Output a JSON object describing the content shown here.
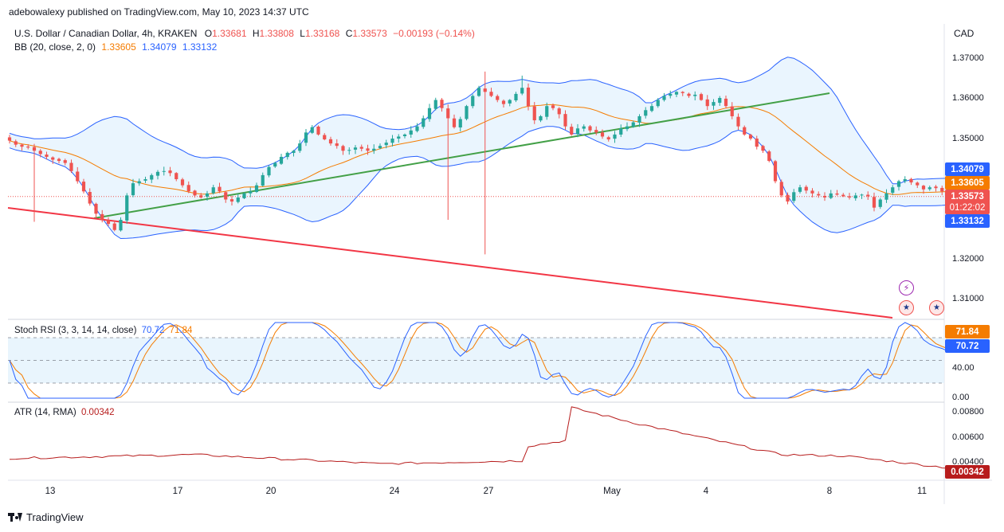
{
  "publisher_line": "adebowalexy published on TradingView.com, May 10, 2023 14:37 UTC",
  "footer_logo_text": "TradingView",
  "currency": "CAD",
  "legend": {
    "title": "U.S. Dollar / Canadian Dollar, 4h, KRAKEN",
    "o_label": "O",
    "o_val": "1.33681",
    "h_label": "H",
    "h_val": "1.33808",
    "l_label": "L",
    "l_val": "1.33168",
    "c_label": "C",
    "c_val": "1.33573",
    "change": "−0.00193 (−0.14%)",
    "bb_label": "BB (20, close, 2, 0)",
    "bb_basis": "1.33605",
    "bb_upper": "1.34079",
    "bb_lower": "1.33132"
  },
  "price_tags": {
    "upper": "1.34079",
    "basis": "1.33605",
    "close": "1.33573",
    "countdown": "01:22:02",
    "lower": "1.33132"
  },
  "price_axis": [
    "1.37000",
    "1.36000",
    "1.35000",
    "1.32000",
    "1.31000"
  ],
  "stoch": {
    "label": "Stoch RSI (3, 3, 14, 14, close)",
    "k_val": "70.72",
    "d_val": "71.84",
    "axis": [
      "40.00",
      "0.00"
    ]
  },
  "atr": {
    "label": "ATR (14, RMA)",
    "val": "0.00342",
    "axis": [
      "0.00800",
      "0.00600",
      "0.00400"
    ]
  },
  "x_ticks": [
    "13",
    "17",
    "20",
    "24",
    "27",
    "May",
    "4",
    "8",
    "11"
  ],
  "colors": {
    "up": "#26a69a",
    "down": "#ef5350",
    "basis": "#f57c00",
    "bands": "#2962ff",
    "band_fill": "#e3f2fd",
    "support": "#43a047",
    "resistance": "#f23645",
    "atr": "#b71c1c"
  },
  "chart_data": [
    {
      "type": "candlestick",
      "name": "USDCAD 4h with Bollinger Bands",
      "y_range": [
        1.3045,
        1.3735
      ],
      "close": [
        1.3495,
        1.3485,
        1.348,
        1.3478,
        1.347,
        1.3462,
        1.3455,
        1.3448,
        1.3445,
        1.344,
        1.342,
        1.3395,
        1.337,
        1.334,
        1.3315,
        1.33,
        1.329,
        1.3275,
        1.33,
        1.336,
        1.339,
        1.3395,
        1.34,
        1.341,
        1.3418,
        1.342,
        1.3415,
        1.34,
        1.3385,
        1.337,
        1.336,
        1.3355,
        1.3365,
        1.338,
        1.337,
        1.335,
        1.3345,
        1.3355,
        1.3365,
        1.337,
        1.3385,
        1.341,
        1.343,
        1.344,
        1.3455,
        1.3465,
        1.347,
        1.3488,
        1.3515,
        1.3528,
        1.351,
        1.3498,
        1.3488,
        1.3482,
        1.347,
        1.3472,
        1.3478,
        1.3475,
        1.347,
        1.3475,
        1.3482,
        1.349,
        1.35,
        1.3505,
        1.351,
        1.352,
        1.353,
        1.355,
        1.3575,
        1.3595,
        1.3575,
        1.355,
        1.3528,
        1.3548,
        1.358,
        1.3605,
        1.3625,
        1.3615,
        1.3605,
        1.3595,
        1.3585,
        1.3595,
        1.361,
        1.3625,
        1.358,
        1.3545,
        1.3555,
        1.358,
        1.3575,
        1.356,
        1.353,
        1.351,
        1.3525,
        1.353,
        1.352,
        1.3515,
        1.3505,
        1.3498,
        1.351,
        1.3525,
        1.353,
        1.354,
        1.3555,
        1.357,
        1.358,
        1.3595,
        1.3605,
        1.361,
        1.3615,
        1.3612,
        1.3605,
        1.3608,
        1.3595,
        1.358,
        1.359,
        1.36,
        1.358,
        1.3555,
        1.353,
        1.351,
        1.35,
        1.348,
        1.347,
        1.3445,
        1.3395,
        1.336,
        1.3345,
        1.3368,
        1.338,
        1.3372,
        1.3365,
        1.336,
        1.3355,
        1.3365,
        1.3362,
        1.3358,
        1.3355,
        1.336,
        1.3362,
        1.3358,
        1.333,
        1.335,
        1.3365,
        1.338,
        1.3395,
        1.34,
        1.3392,
        1.3385,
        1.3375,
        1.338,
        1.3378,
        1.337,
        1.3372,
        1.3357
      ],
      "bb_period": 20,
      "bb_stddev": 2,
      "last": {
        "upper": 1.34079,
        "basis": 1.33605,
        "close": 1.33573,
        "lower": 1.33132
      }
    },
    {
      "type": "line",
      "name": "Stoch RSI (3, 3, 14, 14, close)",
      "y_range": [
        0,
        100
      ],
      "bands": [
        20,
        50,
        80
      ],
      "last": {
        "k": 70.72,
        "d": 71.84
      }
    },
    {
      "type": "line",
      "name": "ATR (14, RMA)",
      "y_range": [
        0.0026,
        0.0086
      ],
      "key_points": [
        {
          "bar": 0,
          "value": 0.0042
        },
        {
          "bar": 30,
          "value": 0.0045
        },
        {
          "bar": 60,
          "value": 0.00375
        },
        {
          "bar": 83,
          "value": 0.004
        },
        {
          "bar": 84,
          "value": 0.0052
        },
        {
          "bar": 90,
          "value": 0.00565
        },
        {
          "bar": 91,
          "value": 0.00835
        },
        {
          "bar": 102,
          "value": 0.007
        },
        {
          "bar": 125,
          "value": 0.0045
        },
        {
          "bar": 135,
          "value": 0.0044
        },
        {
          "bar": 152,
          "value": 0.00342
        }
      ],
      "last": 0.00342
    }
  ]
}
